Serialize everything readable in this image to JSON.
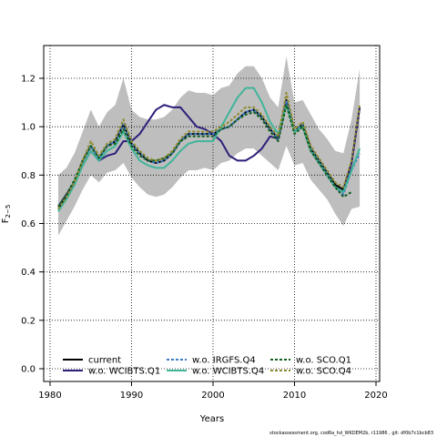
{
  "footer": "stockassessment.org, cod6a_hd_WKDEM2b, r11986 , git: df0b7c1bcb83",
  "chart_data": {
    "type": "line",
    "xlabel": "Years",
    "ylabel_main": "F",
    "ylabel_sub": "2−5",
    "xlim": [
      1980,
      2020
    ],
    "ylim": [
      0.0,
      1.2
    ],
    "x_ticks": [
      1980,
      1990,
      2000,
      2010,
      2020
    ],
    "y_ticks": [
      "0.0",
      "0.2",
      "0.4",
      "0.6",
      "0.8",
      "1.0",
      "1.2"
    ],
    "grid": true,
    "legend_position": "bottom-left",
    "confidence_band": {
      "x": [
        1981,
        1982,
        1983,
        1984,
        1985,
        1986,
        1987,
        1988,
        1989,
        1990,
        1991,
        1992,
        1993,
        1994,
        1995,
        1996,
        1997,
        1998,
        1999,
        2000,
        2001,
        2002,
        2003,
        2004,
        2005,
        2006,
        2007,
        2008,
        2009,
        2010,
        2011,
        2012,
        2013,
        2014,
        2015,
        2016,
        2017,
        2018
      ],
      "upper": [
        0.8,
        0.83,
        0.89,
        0.98,
        1.07,
        1.0,
        1.06,
        1.09,
        1.2,
        1.07,
        1.04,
        1.03,
        1.03,
        1.04,
        1.07,
        1.12,
        1.15,
        1.14,
        1.14,
        1.13,
        1.16,
        1.17,
        1.22,
        1.25,
        1.25,
        1.2,
        1.12,
        1.08,
        1.29,
        1.1,
        1.11,
        1.05,
        0.99,
        0.95,
        0.9,
        0.89,
        1.03,
        1.24
      ],
      "lower": [
        0.55,
        0.61,
        0.67,
        0.74,
        0.8,
        0.77,
        0.81,
        0.82,
        0.85,
        0.79,
        0.75,
        0.72,
        0.71,
        0.72,
        0.75,
        0.79,
        0.82,
        0.82,
        0.83,
        0.82,
        0.85,
        0.86,
        0.89,
        0.91,
        0.91,
        0.88,
        0.85,
        0.82,
        0.92,
        0.84,
        0.85,
        0.78,
        0.74,
        0.7,
        0.64,
        0.59,
        0.66,
        0.67
      ],
      "color": "#bebebe"
    },
    "series": [
      {
        "name": "current",
        "color": "#000000",
        "dash": "solid",
        "x": [
          1981,
          1982,
          1983,
          1984,
          1985,
          1986,
          1987,
          1988,
          1989,
          1990,
          1991,
          1992,
          1993,
          1994,
          1995,
          1996,
          1997,
          1998,
          1999,
          2000,
          2001,
          2002,
          2003,
          2004,
          2005,
          2006,
          2007,
          2008,
          2009,
          2010,
          2011,
          2012,
          2013,
          2014,
          2015,
          2016,
          2017,
          2018
        ],
        "y": [
          0.66,
          0.71,
          0.77,
          0.86,
          0.92,
          0.87,
          0.92,
          0.94,
          1.01,
          0.93,
          0.89,
          0.86,
          0.85,
          0.86,
          0.89,
          0.94,
          0.97,
          0.97,
          0.97,
          0.97,
          0.99,
          1.0,
          1.03,
          1.06,
          1.07,
          1.04,
          0.99,
          0.95,
          1.11,
          0.98,
          1.01,
          0.91,
          0.86,
          0.81,
          0.76,
          0.74,
          0.85,
          1.08
        ]
      },
      {
        "name": "w.o. WCIBTS.Q1",
        "color": "#2b1f7a",
        "dash": "solid",
        "x": [
          1981,
          1982,
          1983,
          1984,
          1985,
          1986,
          1987,
          1988,
          1989,
          1990,
          1991,
          1992,
          1993,
          1994,
          1995,
          1996,
          1997,
          1998,
          1999,
          2000,
          2001,
          2002,
          2003,
          2004,
          2005,
          2006,
          2007,
          2008,
          2009,
          2010,
          2011,
          2012,
          2013,
          2014,
          2015,
          2016,
          2017,
          2018
        ],
        "y": [
          0.67,
          0.72,
          0.77,
          0.84,
          0.9,
          0.86,
          0.88,
          0.89,
          0.94,
          0.94,
          0.97,
          1.02,
          1.07,
          1.09,
          1.08,
          1.08,
          1.04,
          1.0,
          0.99,
          0.97,
          0.94,
          0.88,
          0.86,
          0.86,
          0.88,
          0.91,
          0.96,
          0.95,
          1.1,
          0.98,
          1.0,
          0.9,
          0.85,
          0.8,
          0.75,
          0.73,
          0.85,
          1.08
        ]
      },
      {
        "name": "w.o. IRGFS.Q4",
        "color": "#3b79c8",
        "dash": "dashed",
        "x": [
          1981,
          1982,
          1983,
          1984,
          1985,
          1986,
          1987,
          1988,
          1989,
          1990,
          1991,
          1992,
          1993,
          1994,
          1995,
          1996,
          1997,
          1998,
          1999,
          2000,
          2001,
          2002,
          2003,
          2004,
          2005,
          2006,
          2007,
          2008,
          2009,
          2010,
          2011,
          2012,
          2013,
          2014,
          2015,
          2016,
          2017,
          2018
        ],
        "y": [
          0.66,
          0.71,
          0.77,
          0.86,
          0.92,
          0.87,
          0.92,
          0.94,
          1.01,
          0.93,
          0.89,
          0.86,
          0.85,
          0.86,
          0.89,
          0.94,
          0.97,
          0.97,
          0.97,
          0.97,
          0.99,
          1.0,
          1.03,
          1.06,
          1.07,
          1.04,
          0.99,
          0.95,
          1.11,
          0.98,
          1.01,
          0.91,
          0.86,
          0.81,
          0.75,
          0.72,
          0.82,
          0.89
        ]
      },
      {
        "name": "w.o. WCIBTS.Q4",
        "color": "#3fb59a",
        "dash": "solid",
        "x": [
          1981,
          1982,
          1983,
          1984,
          1985,
          1986,
          1987,
          1988,
          1989,
          1990,
          1991,
          1992,
          1993,
          1994,
          1995,
          1996,
          1997,
          1998,
          1999,
          2000,
          2001,
          2002,
          2003,
          2004,
          2005,
          2006,
          2007,
          2008,
          2009,
          2010,
          2011,
          2012,
          2013,
          2014,
          2015,
          2016,
          2017,
          2018
        ],
        "y": [
          0.65,
          0.7,
          0.76,
          0.84,
          0.9,
          0.86,
          0.9,
          0.92,
          0.98,
          0.91,
          0.86,
          0.84,
          0.83,
          0.83,
          0.86,
          0.9,
          0.93,
          0.94,
          0.94,
          0.94,
          1.0,
          1.06,
          1.12,
          1.16,
          1.16,
          1.1,
          1.02,
          0.97,
          1.09,
          0.98,
          1.0,
          0.9,
          0.85,
          0.8,
          0.75,
          0.73,
          0.82,
          0.91
        ]
      },
      {
        "name": "w.o. SCO.Q1",
        "color": "#0f5e1e",
        "dash": "dashed",
        "x": [
          1981,
          1982,
          1983,
          1984,
          1985,
          1986,
          1987,
          1988,
          1989,
          1990,
          1991,
          1992,
          1993,
          1994,
          1995,
          1996,
          1997,
          1998,
          1999,
          2000,
          2001,
          2002,
          2003,
          2004,
          2005,
          2006,
          2007,
          2008,
          2009,
          2010,
          2011,
          2012,
          2013,
          2014,
          2015,
          2016,
          2017,
          2018
        ],
        "y": [
          0.67,
          0.72,
          0.78,
          0.86,
          0.92,
          0.87,
          0.92,
          0.93,
          0.99,
          0.92,
          0.88,
          0.86,
          0.86,
          0.87,
          0.89,
          0.94,
          0.96,
          0.96,
          0.96,
          0.96,
          0.99,
          1.0,
          1.03,
          1.05,
          1.06,
          1.03,
          0.98,
          0.94,
          1.09,
          0.97,
          1.0,
          0.9,
          0.85,
          0.8,
          0.75,
          0.71,
          0.73,
          null
        ]
      },
      {
        "name": "w.o. SCO.Q4",
        "color": "#8e8a2c",
        "dash": "dashed",
        "x": [
          1981,
          1982,
          1983,
          1984,
          1985,
          1986,
          1987,
          1988,
          1989,
          1990,
          1991,
          1992,
          1993,
          1994,
          1995,
          1996,
          1997,
          1998,
          1999,
          2000,
          2001,
          2002,
          2003,
          2004,
          2005,
          2006,
          2007,
          2008,
          2009,
          2010,
          2011,
          2012,
          2013,
          2014,
          2015,
          2016,
          2017,
          2018
        ],
        "y": [
          0.66,
          0.71,
          0.77,
          0.86,
          0.94,
          0.88,
          0.93,
          0.95,
          1.03,
          0.94,
          0.9,
          0.87,
          0.86,
          0.87,
          0.9,
          0.95,
          0.98,
          0.98,
          0.98,
          0.98,
          1.0,
          1.02,
          1.05,
          1.08,
          1.08,
          1.05,
          1.0,
          0.96,
          1.14,
          0.99,
          1.02,
          0.92,
          0.87,
          0.82,
          0.77,
          0.75,
          0.86,
          1.09
        ]
      }
    ]
  }
}
